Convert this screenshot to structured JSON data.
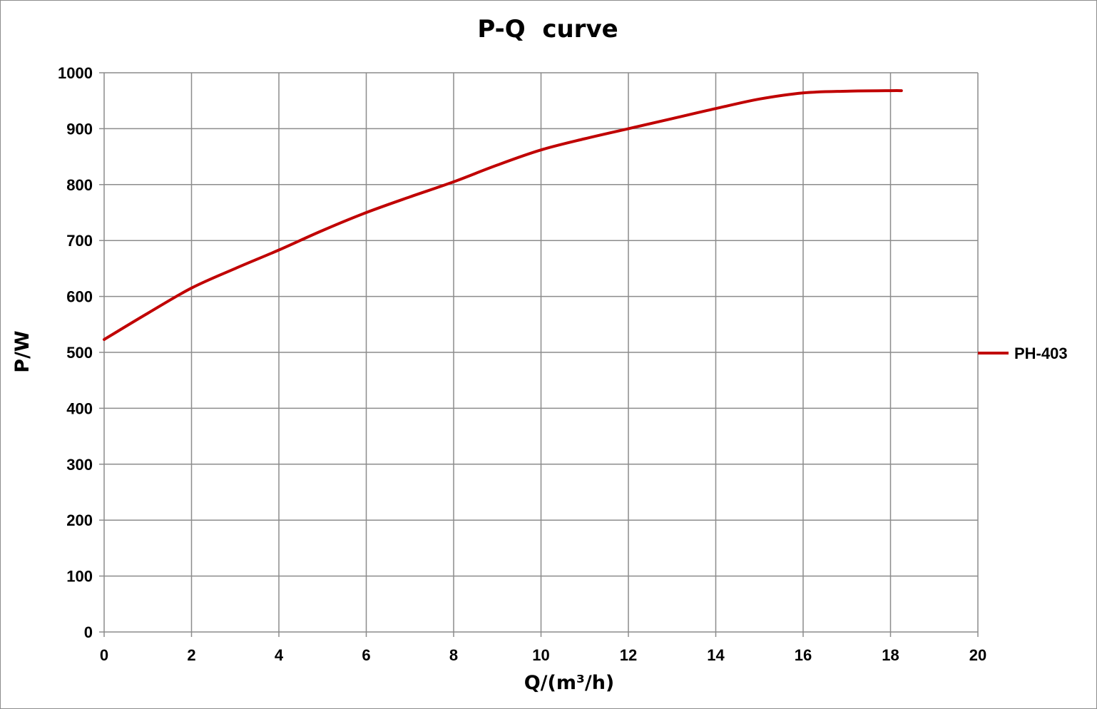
{
  "chart_data": {
    "type": "line",
    "title": "P-Q  curve",
    "xlabel": "Q/(m³/h)",
    "ylabel": "P/W",
    "xlim": [
      0,
      20
    ],
    "ylim": [
      0,
      1000
    ],
    "x_ticks": [
      "0",
      "2",
      "4",
      "6",
      "8",
      "10",
      "12",
      "14",
      "16",
      "18",
      "20"
    ],
    "y_ticks": [
      "0",
      "100",
      "200",
      "300",
      "400",
      "500",
      "600",
      "700",
      "800",
      "900",
      "1000"
    ],
    "grid": true,
    "legend_position": "right",
    "series": [
      {
        "name": "PH-403",
        "color": "#c00000",
        "x": [
          0,
          1,
          2,
          3,
          4,
          5,
          6,
          7,
          8,
          9,
          10,
          11,
          12,
          13,
          14,
          15,
          16,
          17,
          18,
          18.25
        ],
        "y": [
          523,
          570,
          615,
          650,
          683,
          718,
          750,
          778,
          805,
          835,
          862,
          882,
          900,
          918,
          936,
          953,
          964,
          967,
          968,
          968
        ]
      }
    ]
  }
}
